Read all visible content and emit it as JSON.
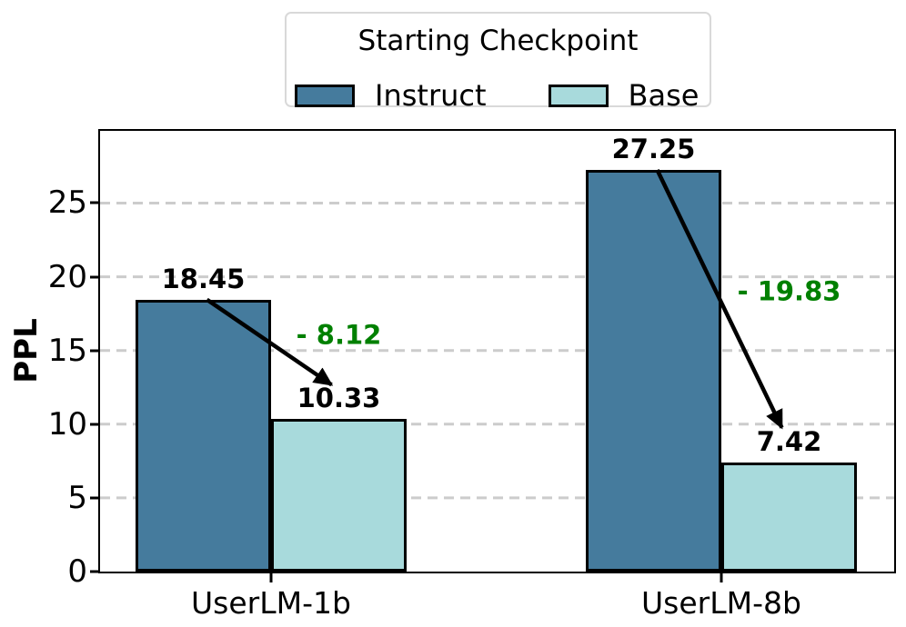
{
  "chart_data": {
    "type": "bar",
    "legend": {
      "title": "Starting Checkpoint",
      "entries": [
        {
          "label": "Instruct",
          "color": "#457B9D"
        },
        {
          "label": "Base",
          "color": "#A8DADC"
        }
      ],
      "position": "top-center"
    },
    "categories": [
      "UserLM-1b",
      "UserLM-8b"
    ],
    "series": [
      {
        "name": "Instruct",
        "color": "#457B9D",
        "values": [
          18.45,
          27.25
        ]
      },
      {
        "name": "Base",
        "color": "#A8DADC",
        "values": [
          10.33,
          7.42
        ]
      }
    ],
    "deltas": [
      {
        "category": "UserLM-1b",
        "label": "- 8.12",
        "value": -8.12
      },
      {
        "category": "UserLM-8b",
        "label": "- 19.83",
        "value": -19.83
      }
    ],
    "value_labels": [
      "18.45",
      "27.25",
      "10.33",
      "7.42"
    ],
    "xlabel": "",
    "ylabel": "PPL",
    "yticks": [
      0,
      5,
      10,
      15,
      20,
      25
    ],
    "ylim": [
      0,
      29.9
    ],
    "grid": {
      "axis": "y",
      "style": "dashed",
      "color": "#cccccc"
    },
    "colors": {
      "delta_text": "#008000",
      "bar_edge": "#000000",
      "arrow": "#000000",
      "background": "#ffffff"
    }
  }
}
